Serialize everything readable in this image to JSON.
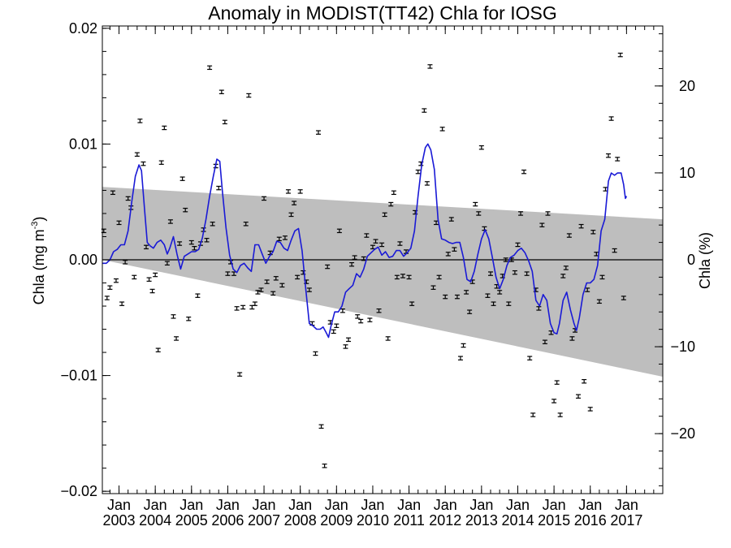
{
  "chart_data": {
    "type": "scatter",
    "title": "Anomaly in MODIST(TT42) Chla for IOSG",
    "ylabel_left": "Chla (mg m",
    "ylabel_left_sup": "-3",
    "ylabel_left_close": ")",
    "ylabel_right": "Chla (%)",
    "xlim": [
      2002.54,
      2018.0
    ],
    "ylim": [
      -0.0202,
      0.0202
    ],
    "y2lim": [
      -26.9,
      26.9
    ],
    "grid": false,
    "zero_line": true,
    "y_ticks": [
      {
        "value": -0.02,
        "label": "−0.02"
      },
      {
        "value": -0.01,
        "label": "−0.01"
      },
      {
        "value": 0.0,
        "label": "0.00"
      },
      {
        "value": 0.01,
        "label": "0.01"
      },
      {
        "value": 0.02,
        "label": "0.02"
      }
    ],
    "y2_ticks": [
      {
        "value": -20,
        "label": "−20"
      },
      {
        "value": -10,
        "label": "−10"
      },
      {
        "value": 0,
        "label": "0"
      },
      {
        "value": 10,
        "label": "10"
      },
      {
        "value": 20,
        "label": "20"
      }
    ],
    "x_ticks": [
      {
        "value": 2003,
        "top": "Jan",
        "bottom": "2003"
      },
      {
        "value": 2004,
        "top": "Jan",
        "bottom": "2004"
      },
      {
        "value": 2005,
        "top": "Jan",
        "bottom": "2005"
      },
      {
        "value": 2006,
        "top": "Jan",
        "bottom": "2006"
      },
      {
        "value": 2007,
        "top": "Jan",
        "bottom": "2007"
      },
      {
        "value": 2008,
        "top": "Jan",
        "bottom": "2008"
      },
      {
        "value": 2009,
        "top": "Jan",
        "bottom": "2009"
      },
      {
        "value": 2010,
        "top": "Jan",
        "bottom": "2010"
      },
      {
        "value": 2011,
        "top": "Jan",
        "bottom": "2011"
      },
      {
        "value": 2012,
        "top": "Jan",
        "bottom": "2012"
      },
      {
        "value": 2013,
        "top": "Jan",
        "bottom": "2013"
      },
      {
        "value": 2014,
        "top": "Jan",
        "bottom": "2014"
      },
      {
        "value": 2015,
        "top": "Jan",
        "bottom": "2015"
      },
      {
        "value": 2016,
        "top": "Jan",
        "bottom": "2016"
      },
      {
        "value": 2017,
        "top": "Jan",
        "bottom": "2017"
      }
    ],
    "trend_band": {
      "upper": [
        [
          2002.54,
          0.0063
        ],
        [
          2018.0,
          0.0035
        ]
      ],
      "lower": [
        [
          2002.54,
          0.0
        ],
        [
          2018.0,
          -0.0101
        ]
      ]
    },
    "error_bar_half_width": 0.00015,
    "points": [
      [
        2002.58,
        0.0025
      ],
      [
        2002.67,
        -0.0033
      ],
      [
        2002.75,
        -0.0024
      ],
      [
        2002.83,
        0.0058
      ],
      [
        2002.92,
        -0.0018
      ],
      [
        2003.0,
        0.0032
      ],
      [
        2003.08,
        -0.0038
      ],
      [
        2003.17,
        -0.0002
      ],
      [
        2003.25,
        0.0053
      ],
      [
        2003.33,
        0.0045
      ],
      [
        2003.42,
        -0.0015
      ],
      [
        2003.5,
        0.0091
      ],
      [
        2003.58,
        0.012
      ],
      [
        2003.67,
        0.0083
      ],
      [
        2003.75,
        0.0011
      ],
      [
        2003.83,
        -0.0017
      ],
      [
        2003.92,
        -0.0027
      ],
      [
        2004.0,
        -0.0013
      ],
      [
        2004.08,
        -0.0078
      ],
      [
        2004.17,
        0.0084
      ],
      [
        2004.25,
        0.0114
      ],
      [
        2004.33,
        -0.0003
      ],
      [
        2004.42,
        0.0033
      ],
      [
        2004.5,
        -0.0049
      ],
      [
        2004.58,
        -0.0068
      ],
      [
        2004.67,
        0.0014
      ],
      [
        2004.75,
        0.007
      ],
      [
        2004.83,
        0.0043
      ],
      [
        2004.92,
        -0.0051
      ],
      [
        2005.0,
        0.0015
      ],
      [
        2005.08,
        0.001
      ],
      [
        2005.17,
        -0.0031
      ],
      [
        2005.25,
        0.0014
      ],
      [
        2005.33,
        0.0026
      ],
      [
        2005.42,
        0.0017
      ],
      [
        2005.5,
        0.0166
      ],
      [
        2005.58,
        0.0031
      ],
      [
        2005.67,
        0.0081
      ],
      [
        2005.75,
        0.0062
      ],
      [
        2005.83,
        0.0145
      ],
      [
        2005.92,
        0.0119
      ],
      [
        2006.0,
        -0.0012
      ],
      [
        2006.08,
        -0.0002
      ],
      [
        2006.17,
        -0.0012
      ],
      [
        2006.25,
        -0.0042
      ],
      [
        2006.33,
        -0.0099
      ],
      [
        2006.42,
        -0.0041
      ],
      [
        2006.5,
        0.0031
      ],
      [
        2006.58,
        0.0142
      ],
      [
        2006.67,
        -0.0041
      ],
      [
        2006.75,
        -0.0038
      ],
      [
        2006.83,
        -0.0028
      ],
      [
        2006.92,
        -0.0026
      ],
      [
        2007.0,
        0.0053
      ],
      [
        2007.08,
        -0.0019
      ],
      [
        2007.17,
        0.0006
      ],
      [
        2007.25,
        -0.0029
      ],
      [
        2007.33,
        -0.0016
      ],
      [
        2007.42,
        0.0018
      ],
      [
        2007.5,
        -0.0022
      ],
      [
        2007.58,
        0.0019
      ],
      [
        2007.67,
        0.0059
      ],
      [
        2007.75,
        0.0039
      ],
      [
        2007.83,
        0.0049
      ],
      [
        2007.92,
        -0.0015
      ],
      [
        2008.0,
        0.0059
      ],
      [
        2008.08,
        -0.0011
      ],
      [
        2008.17,
        -0.0019
      ],
      [
        2008.25,
        -0.0026
      ],
      [
        2008.33,
        -0.0055
      ],
      [
        2008.42,
        -0.0081
      ],
      [
        2008.5,
        0.011
      ],
      [
        2008.58,
        -0.0144
      ],
      [
        2008.67,
        -0.0178
      ],
      [
        2008.75,
        -0.0006
      ],
      [
        2008.83,
        -0.0054
      ],
      [
        2008.92,
        -0.0062
      ],
      [
        2009.0,
        -0.0057
      ],
      [
        2009.08,
        0.0025
      ],
      [
        2009.17,
        -0.0044
      ],
      [
        2009.25,
        -0.0075
      ],
      [
        2009.33,
        -0.0069
      ],
      [
        2009.42,
        -0.0004
      ],
      [
        2009.5,
        0.0002
      ],
      [
        2009.58,
        -0.0049
      ],
      [
        2009.67,
        -0.0053
      ],
      [
        2009.75,
        0.0001
      ],
      [
        2009.83,
        0.0021
      ],
      [
        2009.92,
        -0.0052
      ],
      [
        2010.0,
        0.0011
      ],
      [
        2010.08,
        0.0016
      ],
      [
        2010.17,
        -0.0044
      ],
      [
        2010.25,
        0.0013
      ],
      [
        2010.33,
        0.0039
      ],
      [
        2010.42,
        -0.0068
      ],
      [
        2010.5,
        0.0048
      ],
      [
        2010.58,
        0.0058
      ],
      [
        2010.67,
        -0.0015
      ],
      [
        2010.75,
        0.0014
      ],
      [
        2010.83,
        -0.0014
      ],
      [
        2010.92,
        0.0007
      ],
      [
        2011.0,
        -0.0015
      ],
      [
        2011.08,
        -0.0038
      ],
      [
        2011.17,
        0.0041
      ],
      [
        2011.25,
        0.0076
      ],
      [
        2011.33,
        0.0083
      ],
      [
        2011.42,
        0.0129
      ],
      [
        2011.5,
        0.0066
      ],
      [
        2011.58,
        0.0167
      ],
      [
        2011.67,
        -0.0024
      ],
      [
        2011.75,
        0.0032
      ],
      [
        2011.83,
        -0.0015
      ],
      [
        2011.92,
        0.0113
      ],
      [
        2012.0,
        -0.0032
      ],
      [
        2012.08,
        0.0005
      ],
      [
        2012.17,
        0.0035
      ],
      [
        2012.25,
        0.0009
      ],
      [
        2012.33,
        -0.0032
      ],
      [
        2012.42,
        -0.0085
      ],
      [
        2012.5,
        -0.0074
      ],
      [
        2012.58,
        -0.0028
      ],
      [
        2012.67,
        -0.0045
      ],
      [
        2012.75,
        -0.0019
      ],
      [
        2012.83,
        0.0048
      ],
      [
        2012.92,
        0.004
      ],
      [
        2013.0,
        0.0097
      ],
      [
        2013.08,
        0.0027
      ],
      [
        2013.17,
        -0.0031
      ],
      [
        2013.25,
        -0.0012
      ],
      [
        2013.33,
        -0.0038
      ],
      [
        2013.42,
        -0.0023
      ],
      [
        2013.5,
        -0.0028
      ],
      [
        2013.58,
        -0.0014
      ],
      [
        2013.67,
        0.0
      ],
      [
        2013.75,
        -0.0038
      ],
      [
        2013.83,
        0.0
      ],
      [
        2013.92,
        -0.0011
      ],
      [
        2014.0,
        0.0013
      ],
      [
        2014.08,
        0.004
      ],
      [
        2014.17,
        0.0076
      ],
      [
        2014.25,
        -0.0012
      ],
      [
        2014.33,
        -0.0085
      ],
      [
        2014.42,
        -0.0134
      ],
      [
        2014.5,
        -0.0026
      ],
      [
        2014.58,
        -0.0042
      ],
      [
        2014.67,
        0.003
      ],
      [
        2014.75,
        -0.0071
      ],
      [
        2014.83,
        0.004
      ],
      [
        2014.92,
        -0.0063
      ],
      [
        2015.0,
        -0.0122
      ],
      [
        2015.08,
        -0.0106
      ],
      [
        2015.17,
        -0.0134
      ],
      [
        2015.25,
        -0.0014
      ],
      [
        2015.33,
        -0.0007
      ],
      [
        2015.42,
        0.0021
      ],
      [
        2015.5,
        -0.0068
      ],
      [
        2015.58,
        -0.0061
      ],
      [
        2015.67,
        -0.0118
      ],
      [
        2015.75,
        0.0029
      ],
      [
        2015.83,
        -0.0105
      ],
      [
        2015.92,
        -0.0026
      ],
      [
        2016.0,
        -0.0129
      ],
      [
        2016.08,
        0.0024
      ],
      [
        2016.17,
        0.0005
      ],
      [
        2016.25,
        -0.0036
      ],
      [
        2016.33,
        -0.0015
      ],
      [
        2016.42,
        0.0061
      ],
      [
        2016.5,
        0.009
      ],
      [
        2016.58,
        0.0122
      ],
      [
        2016.67,
        0.0008
      ],
      [
        2016.75,
        0.0087
      ],
      [
        2016.83,
        0.0177
      ],
      [
        2016.92,
        -0.0033
      ]
    ],
    "smoothed_line": [
      [
        2002.54,
        -0.0003
      ],
      [
        2002.65,
        -0.0003
      ],
      [
        2002.75,
        0.0
      ],
      [
        2002.85,
        0.0007
      ],
      [
        2002.95,
        0.0009
      ],
      [
        2003.05,
        0.0013
      ],
      [
        2003.15,
        0.0013
      ],
      [
        2003.25,
        0.0025
      ],
      [
        2003.35,
        0.005
      ],
      [
        2003.45,
        0.0072
      ],
      [
        2003.55,
        0.0082
      ],
      [
        2003.62,
        0.0077
      ],
      [
        2003.7,
        0.0045
      ],
      [
        2003.78,
        0.0015
      ],
      [
        2003.86,
        0.0012
      ],
      [
        2003.95,
        0.001
      ],
      [
        2004.05,
        0.0015
      ],
      [
        2004.15,
        0.0017
      ],
      [
        2004.25,
        0.0013
      ],
      [
        2004.33,
        0.0005
      ],
      [
        2004.4,
        0.001
      ],
      [
        2004.5,
        0.002
      ],
      [
        2004.6,
        0.0005
      ],
      [
        2004.7,
        -0.0008
      ],
      [
        2004.8,
        0.0003
      ],
      [
        2004.9,
        0.0005
      ],
      [
        2005.0,
        0.0007
      ],
      [
        2005.1,
        0.0007
      ],
      [
        2005.2,
        0.0009
      ],
      [
        2005.3,
        0.0019
      ],
      [
        2005.4,
        0.0035
      ],
      [
        2005.5,
        0.0055
      ],
      [
        2005.6,
        0.0072
      ],
      [
        2005.7,
        0.0087
      ],
      [
        2005.78,
        0.0085
      ],
      [
        2005.85,
        0.006
      ],
      [
        2005.95,
        0.0028
      ],
      [
        2006.05,
        0.0004
      ],
      [
        2006.15,
        -0.0008
      ],
      [
        2006.25,
        -0.0011
      ],
      [
        2006.35,
        -0.0005
      ],
      [
        2006.45,
        -0.0003
      ],
      [
        2006.55,
        -0.0007
      ],
      [
        2006.65,
        -0.001
      ],
      [
        2006.75,
        0.0013
      ],
      [
        2006.85,
        0.0013
      ],
      [
        2006.95,
        0.0005
      ],
      [
        2007.05,
        -0.0003
      ],
      [
        2007.15,
        0.0003
      ],
      [
        2007.25,
        0.0007
      ],
      [
        2007.35,
        0.0016
      ],
      [
        2007.45,
        0.0015
      ],
      [
        2007.55,
        0.001
      ],
      [
        2007.65,
        0.0008
      ],
      [
        2007.75,
        0.0017
      ],
      [
        2007.85,
        0.0025
      ],
      [
        2007.95,
        0.0027
      ],
      [
        2008.05,
        0.0008
      ],
      [
        2008.15,
        -0.0025
      ],
      [
        2008.25,
        -0.0055
      ],
      [
        2008.35,
        -0.0057
      ],
      [
        2008.45,
        -0.006
      ],
      [
        2008.55,
        -0.006
      ],
      [
        2008.63,
        -0.0058
      ],
      [
        2008.7,
        -0.0062
      ],
      [
        2008.78,
        -0.0067
      ],
      [
        2008.85,
        -0.0057
      ],
      [
        2008.95,
        -0.0045
      ],
      [
        2009.05,
        -0.0045
      ],
      [
        2009.15,
        -0.004
      ],
      [
        2009.25,
        -0.0028
      ],
      [
        2009.35,
        -0.0025
      ],
      [
        2009.45,
        -0.0022
      ],
      [
        2009.55,
        -0.0012
      ],
      [
        2009.65,
        -0.0015
      ],
      [
        2009.75,
        -0.0008
      ],
      [
        2009.85,
        0.0003
      ],
      [
        2009.95,
        0.0006
      ],
      [
        2010.05,
        0.0009
      ],
      [
        2010.15,
        0.0011
      ],
      [
        2010.25,
        0.0004
      ],
      [
        2010.35,
        0.0007
      ],
      [
        2010.45,
        0.0002
      ],
      [
        2010.55,
        0.0003
      ],
      [
        2010.65,
        0.0008
      ],
      [
        2010.75,
        0.0008
      ],
      [
        2010.85,
        0.0003
      ],
      [
        2010.95,
        0.0006
      ],
      [
        2011.05,
        0.001
      ],
      [
        2011.15,
        0.0025
      ],
      [
        2011.25,
        0.0055
      ],
      [
        2011.35,
        0.0082
      ],
      [
        2011.45,
        0.0097
      ],
      [
        2011.52,
        0.01
      ],
      [
        2011.6,
        0.0095
      ],
      [
        2011.7,
        0.0078
      ],
      [
        2011.8,
        0.0035
      ],
      [
        2011.9,
        0.0018
      ],
      [
        2012.0,
        0.0017
      ],
      [
        2012.1,
        0.0015
      ],
      [
        2012.2,
        0.0014
      ],
      [
        2012.3,
        0.0015
      ],
      [
        2012.4,
        0.0015
      ],
      [
        2012.5,
        0.0002
      ],
      [
        2012.6,
        -0.0017
      ],
      [
        2012.7,
        -0.0019
      ],
      [
        2012.8,
        -0.001
      ],
      [
        2012.9,
        0.0005
      ],
      [
        2013.0,
        0.0018
      ],
      [
        2013.1,
        0.0026
      ],
      [
        2013.2,
        0.0018
      ],
      [
        2013.3,
        0.0002
      ],
      [
        2013.4,
        -0.0015
      ],
      [
        2013.5,
        -0.0025
      ],
      [
        2013.6,
        -0.0017
      ],
      [
        2013.7,
        -0.0005
      ],
      [
        2013.8,
        0.0002
      ],
      [
        2013.9,
        0.0004
      ],
      [
        2014.0,
        0.0008
      ],
      [
        2014.1,
        0.001
      ],
      [
        2014.2,
        0.0006
      ],
      [
        2014.3,
        -0.0001
      ],
      [
        2014.4,
        -0.001
      ],
      [
        2014.5,
        -0.0035
      ],
      [
        2014.6,
        -0.004
      ],
      [
        2014.7,
        -0.003
      ],
      [
        2014.8,
        -0.0035
      ],
      [
        2014.9,
        -0.0055
      ],
      [
        2015.0,
        -0.0063
      ],
      [
        2015.08,
        -0.0064
      ],
      [
        2015.15,
        -0.0055
      ],
      [
        2015.25,
        -0.0035
      ],
      [
        2015.35,
        -0.0028
      ],
      [
        2015.45,
        -0.0043
      ],
      [
        2015.55,
        -0.0055
      ],
      [
        2015.62,
        -0.0061
      ],
      [
        2015.7,
        -0.005
      ],
      [
        2015.8,
        -0.003
      ],
      [
        2015.9,
        -0.002
      ],
      [
        2016.0,
        -0.002
      ],
      [
        2016.1,
        -0.0017
      ],
      [
        2016.2,
        -0.0005
      ],
      [
        2016.3,
        0.0025
      ],
      [
        2016.4,
        0.0035
      ],
      [
        2016.5,
        0.0068
      ],
      [
        2016.58,
        0.0075
      ],
      [
        2016.67,
        0.0073
      ],
      [
        2016.75,
        0.0075
      ],
      [
        2016.85,
        0.0075
      ],
      [
        2016.92,
        0.0065
      ],
      [
        2016.97,
        0.0053
      ],
      [
        2017.0,
        0.0055
      ]
    ]
  }
}
